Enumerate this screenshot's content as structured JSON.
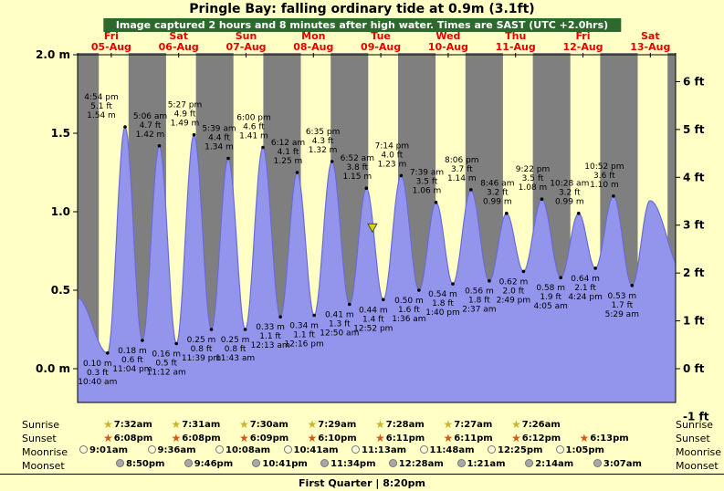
{
  "title": "Pringle Bay: falling ordinary tide at 0.9m (3.1ft)",
  "banner": "Image captured 2 hours and 8 minutes after high water. Times are SAST (UTC +2.0hrs)",
  "chart_data": {
    "type": "area",
    "title": "Pringle Bay tide heights",
    "y_left_unit": "m",
    "y_right_unit": "ft",
    "ylim_m": [
      -0.21,
      2.02
    ],
    "days": [
      {
        "dow": "Fri",
        "date": "05-Aug"
      },
      {
        "dow": "Sat",
        "date": "06-Aug"
      },
      {
        "dow": "Sun",
        "date": "07-Aug"
      },
      {
        "dow": "Mon",
        "date": "08-Aug"
      },
      {
        "dow": "Tue",
        "date": "09-Aug"
      },
      {
        "dow": "Wed",
        "date": "10-Aug"
      },
      {
        "dow": "Thu",
        "date": "11-Aug"
      },
      {
        "dow": "Fri",
        "date": "12-Aug"
      },
      {
        "dow": "Sat",
        "date": "13-Aug"
      }
    ],
    "left_ticks": [
      {
        "m": 2.0,
        "label": "2.0 m"
      },
      {
        "m": 1.5,
        "label": "1.5"
      },
      {
        "m": 1.0,
        "label": "1.0"
      },
      {
        "m": 0.5,
        "label": "0.5"
      },
      {
        "m": 0.0,
        "label": "0.0 m"
      }
    ],
    "right_ticks": [
      {
        "ft": 6,
        "label": "6 ft"
      },
      {
        "ft": 5,
        "label": "5 ft"
      },
      {
        "ft": 4,
        "label": "4 ft"
      },
      {
        "ft": 3,
        "label": "3 ft"
      },
      {
        "ft": 2,
        "label": "2 ft"
      },
      {
        "ft": 1,
        "label": "1 ft"
      },
      {
        "ft": 0,
        "label": "0 ft"
      },
      {
        "ft": -1,
        "label": "-1 ft"
      }
    ],
    "extremes": [
      {
        "kind": "low",
        "day": 0,
        "time": "10:40 am",
        "m": 0.1,
        "ft": 0.3
      },
      {
        "kind": "high",
        "day": 0,
        "time": "4:54 pm",
        "m": 1.54,
        "ft": 5.1
      },
      {
        "kind": "low",
        "day": 0,
        "time": "11:04 pm",
        "m": 0.18,
        "ft": 0.6
      },
      {
        "kind": "high",
        "day": 1,
        "time": "5:06 am",
        "m": 1.42,
        "ft": 4.7
      },
      {
        "kind": "low",
        "day": 1,
        "time": "11:12 am",
        "m": 0.16,
        "ft": 0.5
      },
      {
        "kind": "high",
        "day": 1,
        "time": "5:27 pm",
        "m": 1.49,
        "ft": 4.9
      },
      {
        "kind": "low",
        "day": 1,
        "time": "11:39 pm",
        "m": 0.25,
        "ft": 0.8
      },
      {
        "kind": "high",
        "day": 2,
        "time": "5:39 am",
        "m": 1.34,
        "ft": 4.4
      },
      {
        "kind": "low",
        "day": 2,
        "time": "11:43 am",
        "m": 0.25,
        "ft": 0.8
      },
      {
        "kind": "high",
        "day": 2,
        "time": "6:00 pm",
        "m": 1.41,
        "ft": 4.6
      },
      {
        "kind": "low",
        "day": 3,
        "time": "12:13 am",
        "m": 0.33,
        "ft": 1.1
      },
      {
        "kind": "high",
        "day": 3,
        "time": "6:12 am",
        "m": 1.25,
        "ft": 4.1
      },
      {
        "kind": "low",
        "day": 3,
        "time": "12:16 pm",
        "m": 0.34,
        "ft": 1.1
      },
      {
        "kind": "high",
        "day": 3,
        "time": "6:35 pm",
        "m": 1.32,
        "ft": 4.3
      },
      {
        "kind": "low",
        "day": 4,
        "time": "12:50 am",
        "m": 0.41,
        "ft": 1.3
      },
      {
        "kind": "high",
        "day": 4,
        "time": "6:52 am",
        "m": 1.15,
        "ft": 3.8
      },
      {
        "kind": "low",
        "day": 4,
        "time": "12:52 pm",
        "m": 0.44,
        "ft": 1.4
      },
      {
        "kind": "high",
        "day": 4,
        "time": "7:14 pm",
        "m": 1.23,
        "ft": 4.0
      },
      {
        "kind": "low",
        "day": 5,
        "time": "1:36 am",
        "m": 0.5,
        "ft": 1.6
      },
      {
        "kind": "high",
        "day": 5,
        "time": "7:39 am",
        "m": 1.06,
        "ft": 3.5
      },
      {
        "kind": "low",
        "day": 5,
        "time": "1:40 pm",
        "m": 0.54,
        "ft": 1.8
      },
      {
        "kind": "high",
        "day": 5,
        "time": "8:06 pm",
        "m": 1.14,
        "ft": 3.7
      },
      {
        "kind": "low",
        "day": 6,
        "time": "2:37 am",
        "m": 0.56,
        "ft": 1.8
      },
      {
        "kind": "high",
        "day": 6,
        "time": "8:46 am",
        "m": 0.99,
        "ft": 3.2
      },
      {
        "kind": "low",
        "day": 6,
        "time": "2:49 pm",
        "m": 0.62,
        "ft": 2.0
      },
      {
        "kind": "high",
        "day": 6,
        "time": "9:22 pm",
        "m": 1.08,
        "ft": 3.5
      },
      {
        "kind": "low",
        "day": 7,
        "time": "4:05 am",
        "m": 0.58,
        "ft": 1.9
      },
      {
        "kind": "high",
        "day": 7,
        "time": "10:28 am",
        "m": 0.99,
        "ft": 3.2
      },
      {
        "kind": "low",
        "day": 7,
        "time": "4:24 pm",
        "m": 0.64,
        "ft": 2.1
      },
      {
        "kind": "high",
        "day": 7,
        "time": "10:52 pm",
        "m": 1.1,
        "ft": 3.6
      },
      {
        "kind": "low",
        "day": 8,
        "time": "5:29 am",
        "m": 0.53,
        "ft": 1.7
      }
    ],
    "marker": {
      "day_index": 4,
      "hour": 9.0,
      "level_m": 0.9
    },
    "curve_edge_estimates": {
      "start": {
        "t_h": 0,
        "m": 0.45
      },
      "post": [
        {
          "t_h": 203.9,
          "m": 1.07
        },
        {
          "t_h": 216,
          "m": 0.6
        }
      ]
    },
    "night_shading": {
      "sunset_h": 18.15,
      "sunrise_h": 7.53
    },
    "colors": {
      "background": "#ffffc6",
      "day_band": "#ffffc6",
      "night_band": "#7f7f7f",
      "tide_fill": "#9394ec",
      "tide_edge": "#6b6bd8",
      "marker": "#d8d800",
      "day_label": "#e60000",
      "banner_bg": "#2d682d"
    }
  },
  "astro": {
    "rows": [
      {
        "name": "sunrise",
        "label": "Sunrise",
        "icon": "star",
        "color": "#c9b52e",
        "times": [
          "7:32am",
          "7:31am",
          "7:30am",
          "7:29am",
          "7:28am",
          "7:27am",
          "7:26am"
        ]
      },
      {
        "name": "sunset",
        "label": "Sunset",
        "icon": "star",
        "color": "#dd5512",
        "times": [
          "6:08pm",
          "6:08pm",
          "6:09pm",
          "6:10pm",
          "6:11pm",
          "6:11pm",
          "6:12pm",
          "6:13pm"
        ]
      },
      {
        "name": "moonrise",
        "label": "Moonrise",
        "icon": "circle",
        "color": "#ffffd8",
        "times": [
          "9:01am",
          "9:36am",
          "10:08am",
          "10:41am",
          "11:13am",
          "11:48am",
          "12:25pm",
          "1:05pm"
        ]
      },
      {
        "name": "moonset",
        "label": "Moonset",
        "icon": "circle",
        "color": "#a8a8a8",
        "times": [
          "8:50pm",
          "9:46pm",
          "10:41pm",
          "11:34pm",
          "12:28am",
          "1:21am",
          "2:14am",
          "3:07am"
        ]
      }
    ],
    "footer": "First Quarter | 8:20pm"
  }
}
